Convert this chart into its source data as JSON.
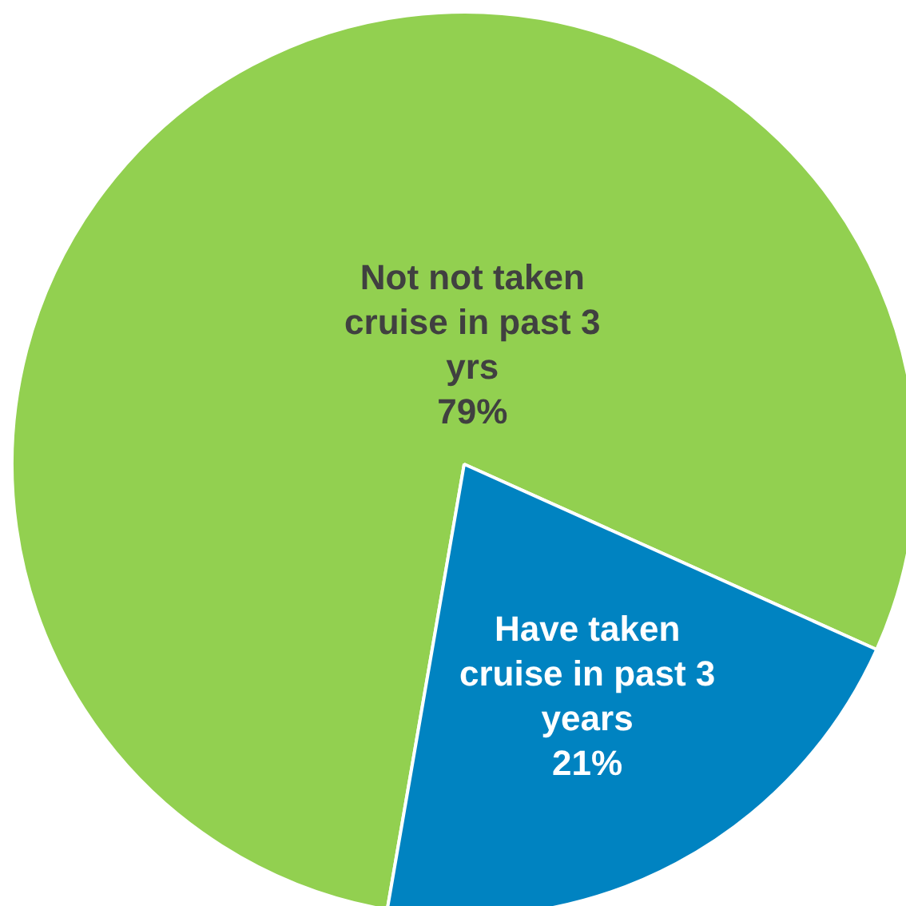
{
  "chart_data": {
    "type": "pie",
    "categories": [
      "Not not taken cruise in past 3 yrs",
      "Have taken cruise in past 3 years"
    ],
    "values": [
      79,
      21
    ],
    "colors": [
      "#92d050",
      "#0083c1"
    ],
    "value_labels": [
      "79%",
      "21%"
    ]
  }
}
